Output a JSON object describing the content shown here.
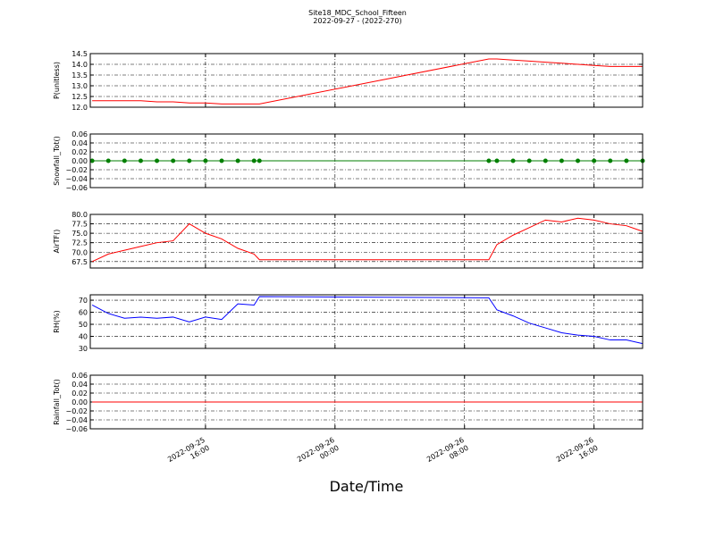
{
  "title": "Site18_MDC_School_Fifteen",
  "subtitle": "2022-09-27 - (2022-270)",
  "xlabel": "Date/Time",
  "chart_data": [
    {
      "type": "line",
      "ylabel": "P(unitless)",
      "x": [
        "2022-09-25 09:00",
        "2022-09-25 10:00",
        "2022-09-25 11:00",
        "2022-09-25 12:00",
        "2022-09-25 13:00",
        "2022-09-25 14:00",
        "2022-09-25 15:00",
        "2022-09-25 16:00",
        "2022-09-25 17:00",
        "2022-09-25 18:00",
        "2022-09-25 19:00",
        "2022-09-25 19:20",
        "2022-09-26 09:30",
        "2022-09-26 10:00",
        "2022-09-26 11:00",
        "2022-09-26 12:00",
        "2022-09-26 13:00",
        "2022-09-26 14:00",
        "2022-09-26 15:00",
        "2022-09-26 16:00",
        "2022-09-26 17:00",
        "2022-09-26 18:00",
        "2022-09-26 19:00"
      ],
      "series": [
        {
          "color": "#ff0000",
          "values": [
            12.3,
            12.3,
            12.3,
            12.3,
            12.25,
            12.25,
            12.2,
            12.2,
            12.15,
            12.15,
            12.15,
            12.15,
            14.25,
            14.25,
            14.2,
            14.15,
            14.1,
            14.05,
            14.0,
            13.95,
            13.9,
            13.9,
            13.9
          ]
        }
      ],
      "xlim": [
        "2022-09-25 08:53",
        "2022-09-26 19:00"
      ],
      "ylim": [
        12,
        14.5
      ],
      "yticks": [
        {
          "value": 12,
          "label": "12.0"
        },
        12.5,
        {
          "value": 13,
          "label": "13.0"
        },
        13.5,
        {
          "value": 14,
          "label": "14.0"
        },
        14.5
      ],
      "grid": true
    },
    {
      "type": "line",
      "ylabel": "Snowfall_Tot()",
      "x": [
        "2022-09-25 09:00",
        "2022-09-25 10:00",
        "2022-09-25 11:00",
        "2022-09-25 12:00",
        "2022-09-25 13:00",
        "2022-09-25 14:00",
        "2022-09-25 15:00",
        "2022-09-25 16:00",
        "2022-09-25 17:00",
        "2022-09-25 18:00",
        "2022-09-25 19:00",
        "2022-09-25 19:20",
        "2022-09-26 09:30",
        "2022-09-26 10:00",
        "2022-09-26 11:00",
        "2022-09-26 12:00",
        "2022-09-26 13:00",
        "2022-09-26 14:00",
        "2022-09-26 15:00",
        "2022-09-26 16:00",
        "2022-09-26 17:00",
        "2022-09-26 18:00",
        "2022-09-26 19:00"
      ],
      "series": [
        {
          "color": "#007f00",
          "markers": true,
          "values": [
            0,
            0,
            0,
            0,
            0,
            0,
            0,
            0,
            0,
            0,
            0,
            0,
            0,
            0,
            0,
            0,
            0,
            0,
            0,
            0,
            0,
            0,
            0
          ]
        }
      ],
      "xlim": [
        "2022-09-25 08:53",
        "2022-09-26 19:00"
      ],
      "ylim": [
        -0.06,
        0.06
      ],
      "yticks": [
        {
          "value": -0.06,
          "label": "−0.06"
        },
        {
          "value": -0.04,
          "label": "−0.04"
        },
        {
          "value": -0.02,
          "label": "−0.02"
        },
        {
          "value": 0,
          "label": "0.00"
        },
        0.02,
        0.04,
        0.06
      ],
      "grid": true
    },
    {
      "type": "line",
      "ylabel": "AirTF()",
      "x": [
        "2022-09-25 09:00",
        "2022-09-25 10:00",
        "2022-09-25 11:00",
        "2022-09-25 12:00",
        "2022-09-25 13:00",
        "2022-09-25 14:00",
        "2022-09-25 15:00",
        "2022-09-25 16:00",
        "2022-09-25 17:00",
        "2022-09-25 18:00",
        "2022-09-25 19:00",
        "2022-09-25 19:20",
        "2022-09-26 09:30",
        "2022-09-26 10:00",
        "2022-09-26 11:00",
        "2022-09-26 12:00",
        "2022-09-26 13:00",
        "2022-09-26 14:00",
        "2022-09-26 15:00",
        "2022-09-26 16:00",
        "2022-09-26 17:00",
        "2022-09-26 18:00",
        "2022-09-26 19:00"
      ],
      "series": [
        {
          "color": "#ff0000",
          "values": [
            67.5,
            69.5,
            70.5,
            71.5,
            72.5,
            73,
            77.5,
            75,
            73.5,
            71,
            69.5,
            68,
            68,
            72,
            74.5,
            76.5,
            78.5,
            78,
            79,
            78.5,
            77.5,
            77,
            75.5
          ]
        }
      ],
      "xlim": [
        "2022-09-25 08:53",
        "2022-09-26 19:00"
      ],
      "ylim": [
        65.8,
        80
      ],
      "yticks": [
        67.5,
        {
          "value": 70,
          "label": "70.0"
        },
        72.5,
        {
          "value": 75,
          "label": "75.0"
        },
        77.5,
        {
          "value": 80,
          "label": "80.0"
        }
      ],
      "grid": true
    },
    {
      "type": "line",
      "ylabel": "RH(%)",
      "x": [
        "2022-09-25 09:00",
        "2022-09-25 10:00",
        "2022-09-25 11:00",
        "2022-09-25 12:00",
        "2022-09-25 13:00",
        "2022-09-25 14:00",
        "2022-09-25 15:00",
        "2022-09-25 16:00",
        "2022-09-25 17:00",
        "2022-09-25 18:00",
        "2022-09-25 19:00",
        "2022-09-25 19:20",
        "2022-09-26 09:30",
        "2022-09-26 10:00",
        "2022-09-26 11:00",
        "2022-09-26 12:00",
        "2022-09-26 13:00",
        "2022-09-26 14:00",
        "2022-09-26 15:00",
        "2022-09-26 16:00",
        "2022-09-26 17:00",
        "2022-09-26 18:00",
        "2022-09-26 19:00"
      ],
      "series": [
        {
          "color": "#0000ff",
          "values": [
            66,
            59,
            55,
            56,
            55,
            56,
            52,
            56,
            54,
            67,
            66,
            73,
            72,
            62,
            57,
            51,
            47,
            43,
            41,
            40,
            37,
            37,
            34
          ]
        }
      ],
      "xlim": [
        "2022-09-25 08:53",
        "2022-09-26 19:00"
      ],
      "ylim": [
        30,
        74.5
      ],
      "yticks": [
        30,
        40,
        50,
        60,
        70
      ],
      "grid": true
    },
    {
      "type": "line",
      "ylabel": "Rainfall_Tot()",
      "x": [
        "2022-09-25 09:00",
        "2022-09-25 10:00",
        "2022-09-25 11:00",
        "2022-09-25 12:00",
        "2022-09-25 13:00",
        "2022-09-25 14:00",
        "2022-09-25 15:00",
        "2022-09-25 16:00",
        "2022-09-25 17:00",
        "2022-09-25 18:00",
        "2022-09-25 19:00",
        "2022-09-25 19:20",
        "2022-09-26 09:30",
        "2022-09-26 10:00",
        "2022-09-26 11:00",
        "2022-09-26 12:00",
        "2022-09-26 13:00",
        "2022-09-26 14:00",
        "2022-09-26 15:00",
        "2022-09-26 16:00",
        "2022-09-26 17:00",
        "2022-09-26 18:00",
        "2022-09-26 19:00"
      ],
      "series": [
        {
          "color": "#ff0000",
          "values": [
            0,
            0,
            0,
            0,
            0,
            0,
            0,
            0,
            0,
            0,
            0,
            0,
            0,
            0,
            0,
            0,
            0,
            0,
            0,
            0,
            0,
            0,
            0
          ]
        }
      ],
      "xlim": [
        "2022-09-25 08:53",
        "2022-09-26 19:00"
      ],
      "ylim": [
        -0.06,
        0.06
      ],
      "yticks": [
        {
          "value": -0.06,
          "label": "−0.06"
        },
        {
          "value": -0.04,
          "label": "−0.04"
        },
        {
          "value": -0.02,
          "label": "−0.02"
        },
        {
          "value": 0,
          "label": "0.00"
        },
        0.02,
        0.04,
        0.06
      ],
      "xticks": [
        "2022-09-25 16:00",
        "2022-09-26 00:00",
        "2022-09-26 08:00",
        "2022-09-26 16:00"
      ],
      "grid": true
    }
  ]
}
